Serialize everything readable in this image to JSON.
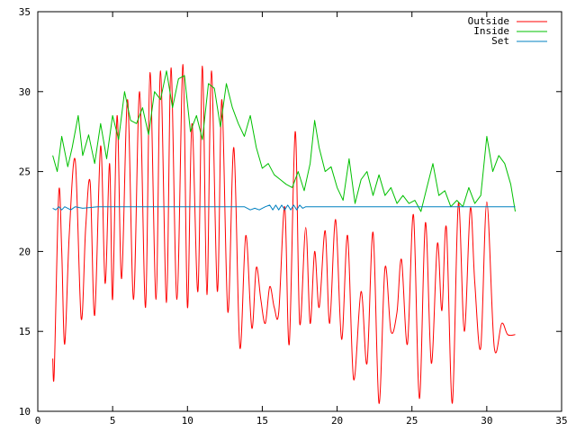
{
  "chart_data": {
    "type": "line",
    "title": "",
    "xlabel": "",
    "ylabel": "",
    "xlim": [
      0,
      35
    ],
    "ylim": [
      10,
      35
    ],
    "x_ticks": [
      "0",
      "5",
      "10",
      "15",
      "20",
      "25",
      "30",
      "35"
    ],
    "y_ticks": [
      "10",
      "15",
      "20",
      "25",
      "30",
      "35"
    ],
    "grid": false,
    "legend_position": "top-right",
    "series": [
      {
        "name": "Outside",
        "color": "#ff0000",
        "x": [
          1.0,
          1.1,
          1.4,
          1.6,
          1.8,
          2.1,
          2.5,
          2.9,
          3.2,
          3.5,
          3.8,
          4.2,
          4.5,
          4.8,
          5.0,
          5.3,
          5.6,
          6.0,
          6.4,
          6.8,
          7.2,
          7.5,
          7.9,
          8.2,
          8.6,
          8.9,
          9.3,
          9.7,
          10.0,
          10.3,
          10.7,
          11.0,
          11.3,
          11.6,
          12.0,
          12.3,
          12.7,
          13.1,
          13.5,
          13.9,
          14.3,
          14.6,
          14.9,
          15.2,
          15.5,
          15.8,
          16.1,
          16.5,
          16.8,
          17.2,
          17.5,
          17.9,
          18.2,
          18.5,
          18.8,
          19.2,
          19.5,
          19.9,
          20.3,
          20.7,
          21.1,
          21.6,
          22.0,
          22.4,
          22.8,
          23.2,
          23.6,
          24.0,
          24.3,
          24.7,
          25.1,
          25.5,
          25.9,
          26.3,
          26.7,
          27.0,
          27.3,
          27.7,
          28.1,
          28.5,
          28.9,
          29.2,
          29.6,
          30.0,
          30.5,
          31.0,
          31.4,
          31.9
        ],
        "y": [
          13.3,
          12.5,
          23.7,
          20.0,
          14.2,
          21.0,
          25.7,
          15.8,
          21.5,
          24.3,
          16.0,
          26.6,
          18.0,
          25.5,
          17.0,
          28.5,
          18.3,
          29.5,
          17.0,
          30.0,
          16.5,
          31.2,
          17.0,
          31.3,
          16.8,
          31.5,
          17.0,
          31.7,
          16.5,
          28.0,
          17.5,
          31.6,
          17.3,
          31.3,
          17.5,
          29.5,
          16.2,
          26.5,
          14.0,
          21.0,
          15.2,
          19.0,
          17.0,
          15.5,
          17.8,
          16.5,
          16.2,
          22.8,
          14.2,
          27.5,
          15.5,
          21.5,
          15.5,
          20.0,
          16.5,
          21.3,
          15.5,
          22.0,
          14.5,
          21.0,
          12.0,
          17.5,
          13.0,
          21.2,
          10.5,
          19.0,
          15.0,
          16.2,
          19.5,
          14.2,
          22.3,
          10.8,
          21.8,
          13.0,
          20.5,
          16.3,
          21.5,
          10.5,
          23.0,
          15.0,
          22.7,
          18.0,
          14.0,
          23.1,
          14.0,
          15.5,
          14.8,
          14.8
        ],
        "interpolation": "smooth"
      },
      {
        "name": "Inside",
        "color": "#00c000",
        "x": [
          1.0,
          1.3,
          1.6,
          2.0,
          2.3,
          2.7,
          3.0,
          3.4,
          3.8,
          4.2,
          4.6,
          5.0,
          5.4,
          5.8,
          6.2,
          6.6,
          7.0,
          7.4,
          7.8,
          8.2,
          8.6,
          9.0,
          9.4,
          9.8,
          10.2,
          10.6,
          11.0,
          11.4,
          11.8,
          12.2,
          12.6,
          13.0,
          13.4,
          13.8,
          14.2,
          14.6,
          15.0,
          15.4,
          15.8,
          16.2,
          16.6,
          17.0,
          17.4,
          17.8,
          18.2,
          18.5,
          18.8,
          19.2,
          19.6,
          20.0,
          20.4,
          20.8,
          21.2,
          21.6,
          22.0,
          22.4,
          22.8,
          23.2,
          23.6,
          24.0,
          24.4,
          24.8,
          25.2,
          25.6,
          26.0,
          26.4,
          26.8,
          27.2,
          27.6,
          28.0,
          28.4,
          28.8,
          29.2,
          29.6,
          30.0,
          30.4,
          30.8,
          31.2,
          31.6,
          31.9
        ],
        "y": [
          26.0,
          25.0,
          27.2,
          25.3,
          26.5,
          28.5,
          26.0,
          27.3,
          25.5,
          28.0,
          25.8,
          28.5,
          27.0,
          30.0,
          28.2,
          28.0,
          29.0,
          27.3,
          30.0,
          29.5,
          31.3,
          29.0,
          30.8,
          31.0,
          27.5,
          28.5,
          27.0,
          30.5,
          30.2,
          27.8,
          30.5,
          29.0,
          28.0,
          27.2,
          28.5,
          26.5,
          25.2,
          25.5,
          24.8,
          24.5,
          24.2,
          24.0,
          25.0,
          23.8,
          25.5,
          28.2,
          26.5,
          25.0,
          25.3,
          24.0,
          23.2,
          25.8,
          23.0,
          24.5,
          25.0,
          23.5,
          24.8,
          23.5,
          24.0,
          23.0,
          23.5,
          23.0,
          23.2,
          22.5,
          24.0,
          25.5,
          23.5,
          23.8,
          22.8,
          23.2,
          22.8,
          24.0,
          23.0,
          23.5,
          27.2,
          25.0,
          26.0,
          25.5,
          24.2,
          22.5
        ],
        "interpolation": "linear"
      },
      {
        "name": "Set",
        "color": "#0080c0",
        "x": [
          1.0,
          1.2,
          1.4,
          1.6,
          1.8,
          2.0,
          2.2,
          2.5,
          3.0,
          4.0,
          6.0,
          8.0,
          10.0,
          12.0,
          13.8,
          14.0,
          14.2,
          14.5,
          14.8,
          15.0,
          15.2,
          15.5,
          15.7,
          15.9,
          16.1,
          16.3,
          16.5,
          16.7,
          16.9,
          17.1,
          17.3,
          17.5,
          17.7,
          17.9,
          18.2,
          20.0,
          22.0,
          24.0,
          26.0,
          28.0,
          30.0,
          31.9
        ],
        "y": [
          22.7,
          22.6,
          22.8,
          22.6,
          22.8,
          22.7,
          22.6,
          22.8,
          22.7,
          22.8,
          22.8,
          22.8,
          22.8,
          22.8,
          22.8,
          22.7,
          22.6,
          22.7,
          22.6,
          22.7,
          22.8,
          22.9,
          22.6,
          22.9,
          22.6,
          22.9,
          22.6,
          22.9,
          22.6,
          22.9,
          22.6,
          22.9,
          22.7,
          22.8,
          22.8,
          22.8,
          22.8,
          22.8,
          22.8,
          22.8,
          22.8,
          22.8
        ],
        "interpolation": "linear"
      }
    ]
  }
}
